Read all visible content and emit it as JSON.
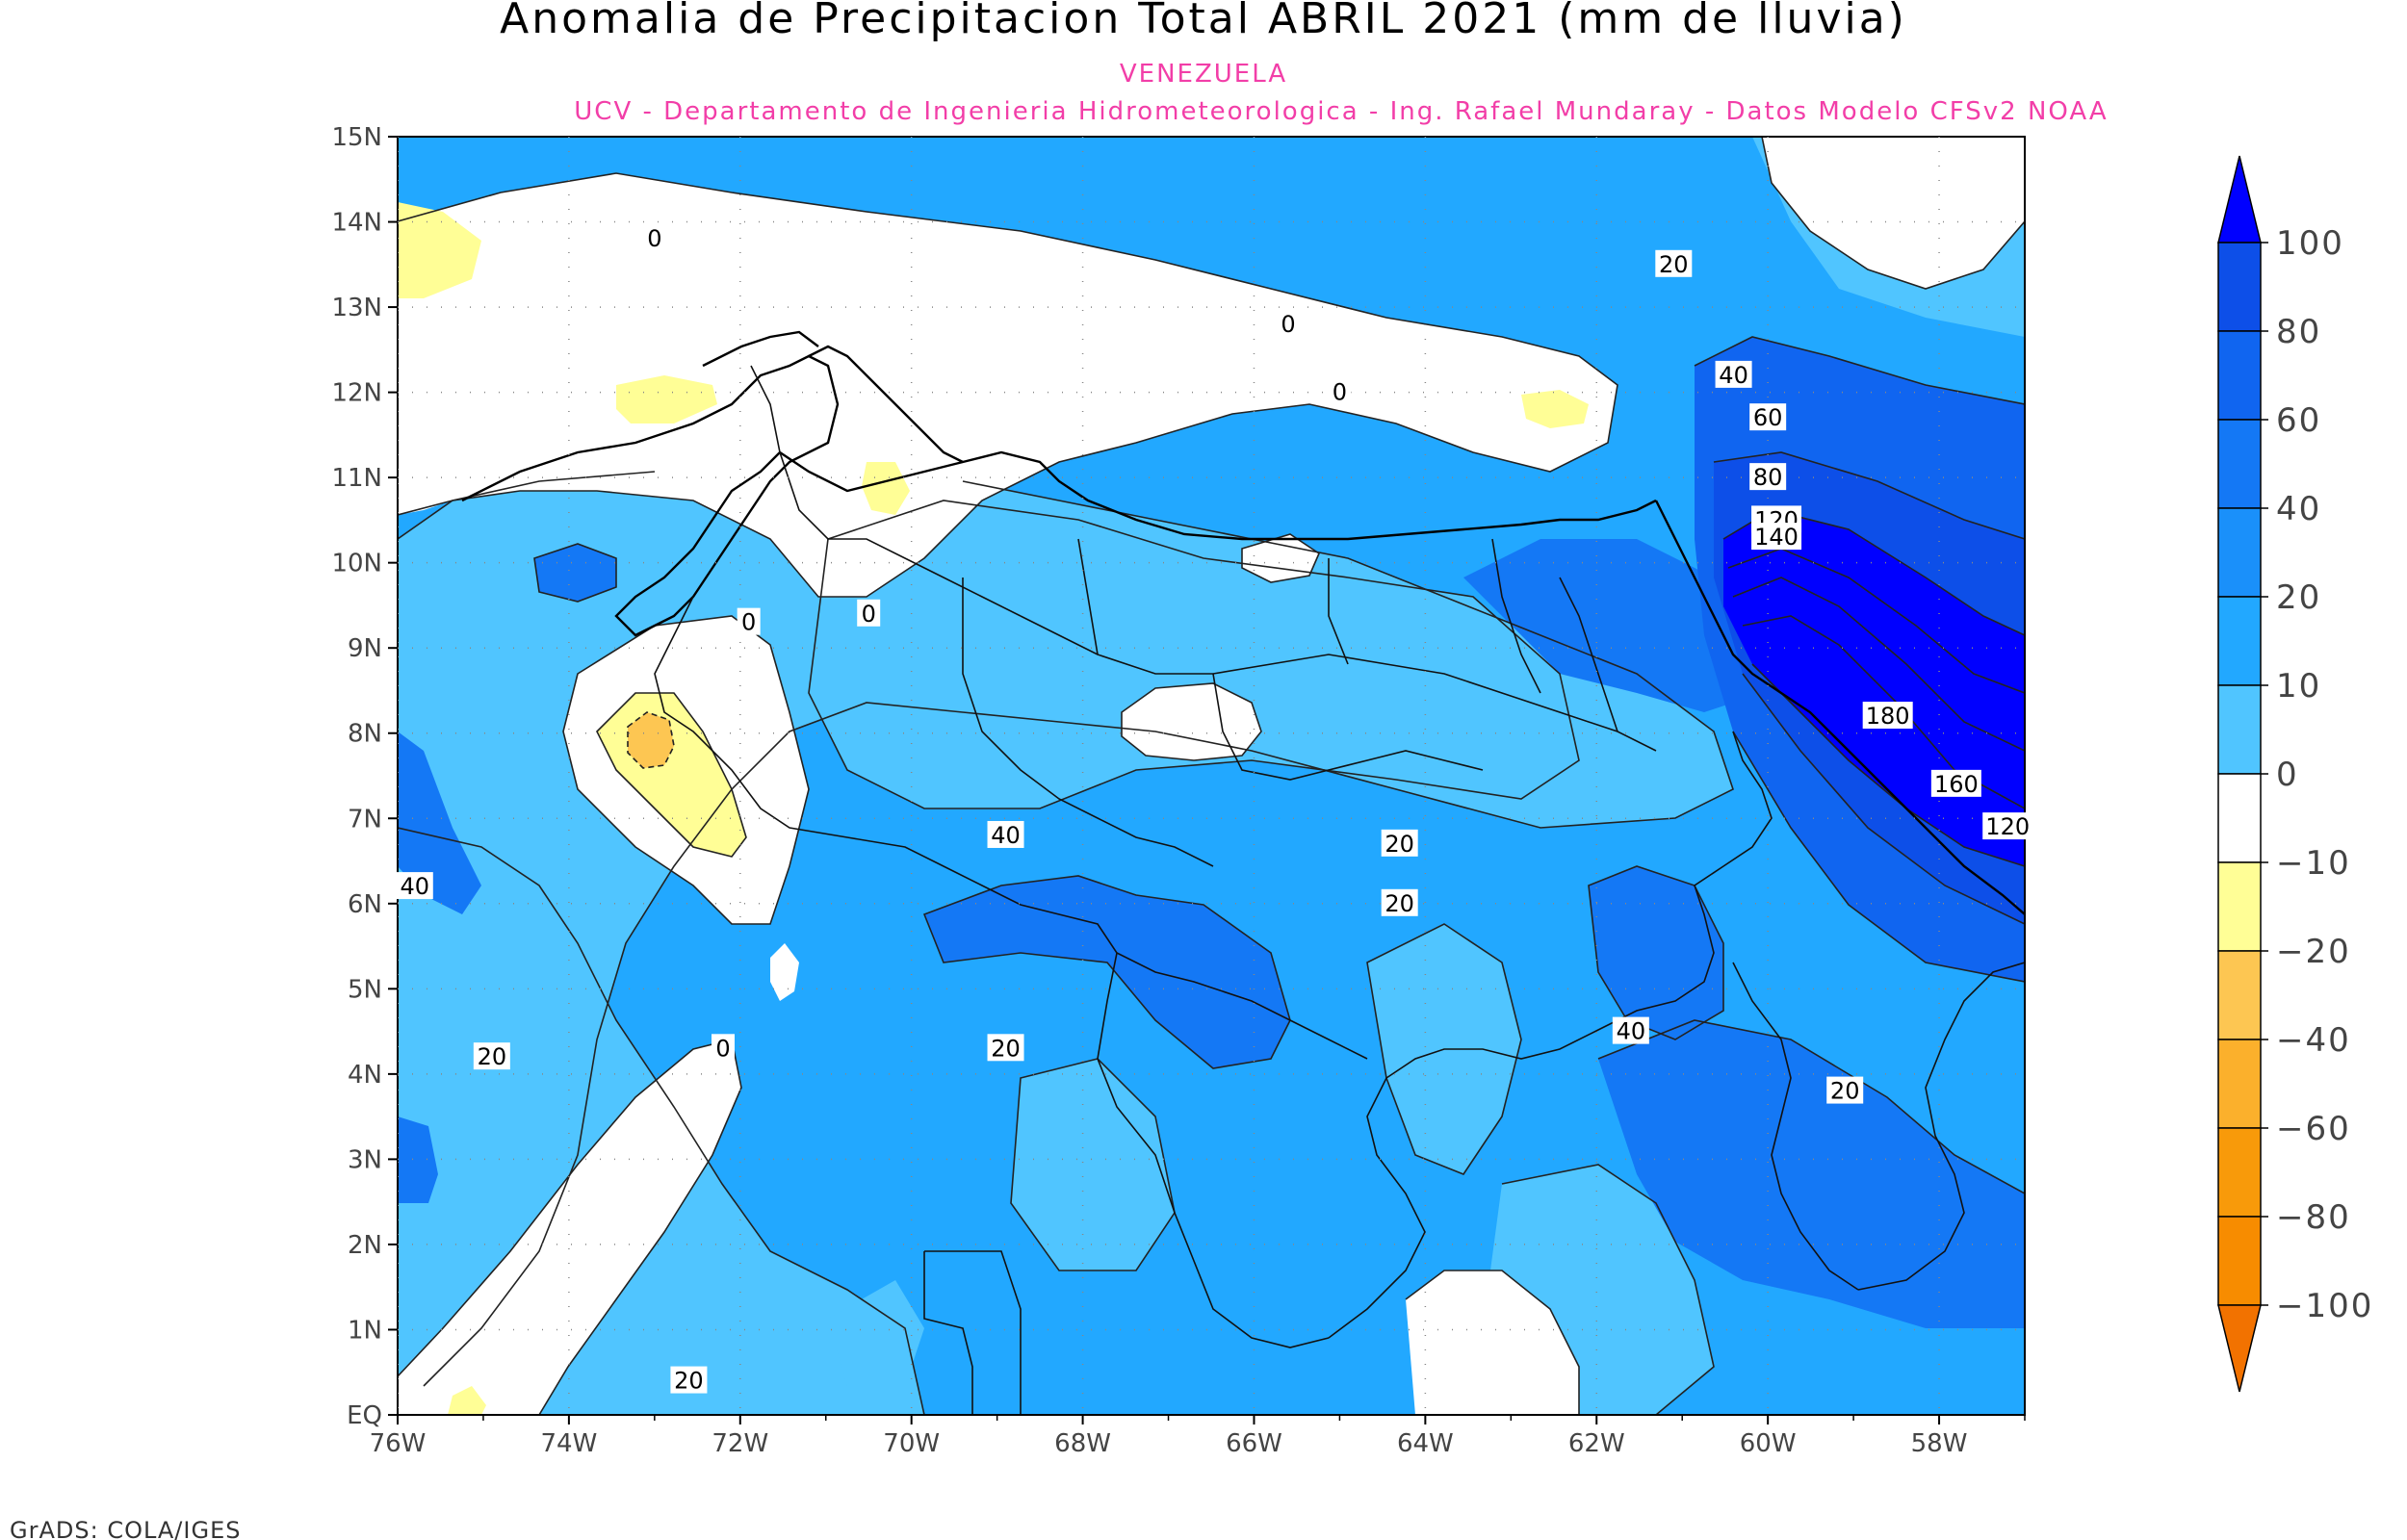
{
  "header": {
    "title": "Anomalia de Precipitacion Total ABRIL 2021 (mm de lluvia)",
    "region": "VENEZUELA",
    "credit": "UCV - Departamento de Ingenieria Hidrometeorologica - Ing. Rafael Mundaray - Datos Modelo CFSv2 NOAA"
  },
  "axes": {
    "lat_labels": [
      "15N",
      "14N",
      "13N",
      "12N",
      "11N",
      "10N",
      "9N",
      "8N",
      "7N",
      "6N",
      "5N",
      "4N",
      "3N",
      "2N",
      "1N",
      "EQ"
    ],
    "lon_labels": [
      "76W",
      "74W",
      "72W",
      "70W",
      "68W",
      "66W",
      "64W",
      "62W",
      "60W",
      "58W"
    ]
  },
  "colorbar": {
    "labels": [
      "100",
      "80",
      "60",
      "40",
      "20",
      "10",
      "0",
      "-10",
      "-20",
      "-40",
      "-60",
      "-80",
      "-100"
    ],
    "colors": [
      "#0000ff",
      "#0d4fe8",
      "#1065f0",
      "#1478f5",
      "#1a90fa",
      "#22a8ff",
      "#50c5ff",
      "#ffffff",
      "#fffe96",
      "#fdc652",
      "#fbb02c",
      "#f89a0a",
      "#f78c00",
      "#f27200"
    ]
  },
  "contour_labels": [
    {
      "text": "0",
      "lon": -73.0,
      "lat": 13.8
    },
    {
      "text": "0",
      "lon": -65.6,
      "lat": 12.8
    },
    {
      "text": "0",
      "lon": -65.0,
      "lat": 12.0
    },
    {
      "text": "20",
      "lon": -61.1,
      "lat": 13.5
    },
    {
      "text": "40",
      "lon": -60.4,
      "lat": 12.2
    },
    {
      "text": "60",
      "lon": -60.0,
      "lat": 11.7
    },
    {
      "text": "80",
      "lon": -60.0,
      "lat": 11.0
    },
    {
      "text": "120",
      "lon": -59.9,
      "lat": 10.5
    },
    {
      "text": "140",
      "lon": -59.9,
      "lat": 10.3
    },
    {
      "text": "180",
      "lon": -58.6,
      "lat": 8.2
    },
    {
      "text": "160",
      "lon": -57.8,
      "lat": 7.4
    },
    {
      "text": "120",
      "lon": -57.2,
      "lat": 6.9
    },
    {
      "text": "0",
      "lon": -71.9,
      "lat": 9.3
    },
    {
      "text": "0",
      "lon": -70.5,
      "lat": 9.4
    },
    {
      "text": "40",
      "lon": -68.9,
      "lat": 6.8
    },
    {
      "text": "20",
      "lon": -64.3,
      "lat": 6.7
    },
    {
      "text": "20",
      "lon": -64.3,
      "lat": 6.0
    },
    {
      "text": "40",
      "lon": -75.8,
      "lat": 6.2
    },
    {
      "text": "20",
      "lon": -74.9,
      "lat": 4.2
    },
    {
      "text": "0",
      "lon": -72.2,
      "lat": 4.3
    },
    {
      "text": "20",
      "lon": -68.9,
      "lat": 4.3
    },
    {
      "text": "40",
      "lon": -61.6,
      "lat": 4.5
    },
    {
      "text": "20",
      "lon": -59.1,
      "lat": 3.8
    },
    {
      "text": "20",
      "lon": -72.6,
      "lat": 0.4
    }
  ],
  "footer": {
    "credit": "GrADS: COLA/IGES"
  }
}
